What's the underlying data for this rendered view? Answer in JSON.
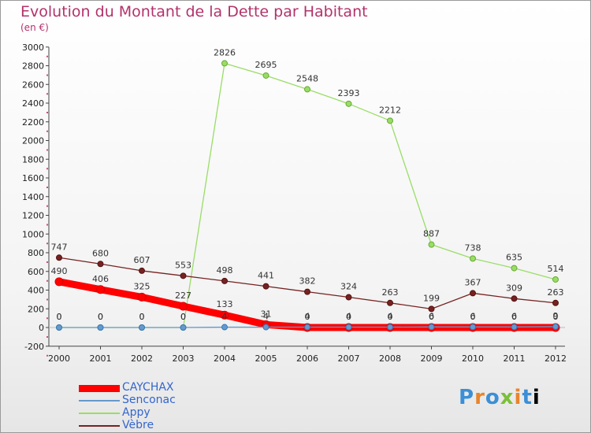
{
  "chart_data": {
    "type": "line",
    "title": "Evolution du Montant de la Dette par Habitant",
    "subtitle": "(en €)",
    "x": [
      "2000",
      "2001",
      "2002",
      "2003",
      "2004",
      "2005",
      "2006",
      "2007",
      "2008",
      "2009",
      "2010",
      "2011",
      "2012"
    ],
    "ylim": [
      -200,
      3000
    ],
    "yticks": [
      -200,
      0,
      200,
      400,
      600,
      800,
      1000,
      1200,
      1400,
      1600,
      1800,
      2000,
      2200,
      2400,
      2600,
      2800,
      3000
    ],
    "grid": false,
    "legend_position": "bottom-left",
    "series": [
      {
        "name": "CAYCHAX",
        "color": "#ff0000",
        "values": [
          490,
          406,
          325,
          227,
          133,
          31,
          0,
          0,
          0,
          0,
          0,
          0,
          0
        ]
      },
      {
        "name": "Senconac",
        "color": "#6699cc",
        "values": [
          0,
          0,
          0,
          0,
          4,
          4,
          4,
          4,
          4,
          6,
          6,
          6,
          9
        ]
      },
      {
        "name": "Appy",
        "color": "#99dd66",
        "values": [
          0,
          0,
          0,
          0,
          2826,
          2695,
          2548,
          2393,
          2212,
          887,
          738,
          635,
          514
        ]
      },
      {
        "name": "Vèbre",
        "color": "#772222",
        "values": [
          747,
          680,
          607,
          553,
          498,
          441,
          382,
          324,
          263,
          199,
          367,
          309,
          263
        ]
      }
    ]
  },
  "brand": {
    "letters": [
      "P",
      "r",
      "o",
      "x",
      "i",
      "t",
      "i"
    ]
  }
}
